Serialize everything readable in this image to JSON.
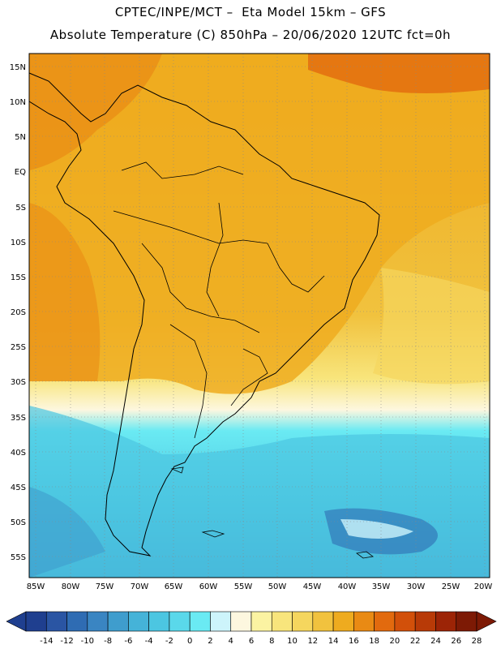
{
  "header": {
    "line1": "CPTEC/INPE/MCT –  Eta Model 15km – GFS",
    "line2": "Absolute Temperature (C) 850hPa – 20/06/2020 12UTC fct=0h"
  },
  "map": {
    "lat_labels": [
      "15N",
      "10N",
      "5N",
      "EQ",
      "5S",
      "10S",
      "15S",
      "20S",
      "25S",
      "30S",
      "35S",
      "40S",
      "45S",
      "50S",
      "55S"
    ],
    "lon_labels": [
      "85W",
      "80W",
      "75W",
      "70W",
      "65W",
      "60W",
      "55W",
      "50W",
      "45W",
      "40W",
      "35W",
      "30W",
      "25W",
      "20W"
    ],
    "grid": "dotted",
    "region": "South America"
  },
  "colorbar": {
    "labels": [
      "-14",
      "-12",
      "-10",
      "-8",
      "-6",
      "-4",
      "-2",
      "0",
      "2",
      "4",
      "6",
      "8",
      "10",
      "12",
      "14",
      "16",
      "18",
      "20",
      "22",
      "24",
      "26",
      "28"
    ],
    "colors": [
      "#1f3f8f",
      "#2a55a3",
      "#2f6cb3",
      "#3a85c2",
      "#3f9dcd",
      "#45b3d8",
      "#4cc6e1",
      "#5ad8ea",
      "#6aeaf3",
      "#cdf4fb",
      "#fdf7df",
      "#fbf3a2",
      "#f8e57c",
      "#f5d65e",
      "#f1c23e",
      "#eeab1f",
      "#e98a14",
      "#e26a0e",
      "#d2500a",
      "#b83a07",
      "#9c2406",
      "#7d1a05"
    ]
  }
}
